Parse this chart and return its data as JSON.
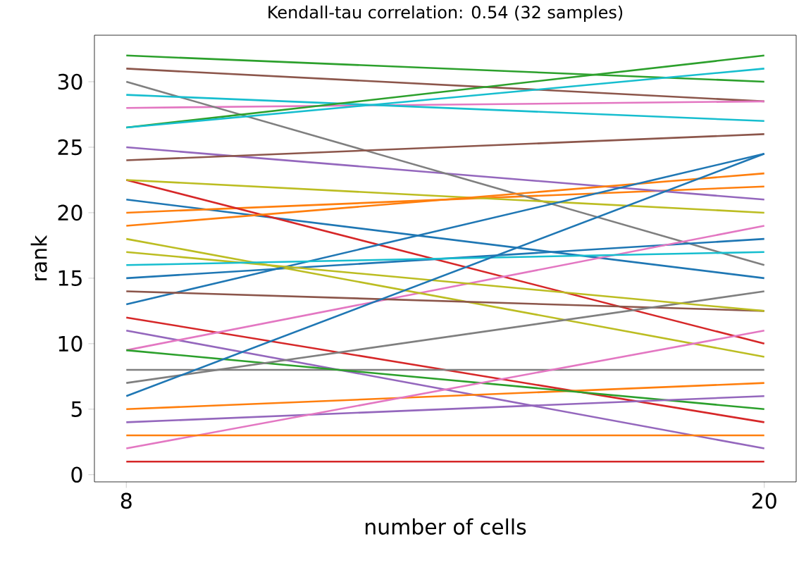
{
  "chart_data": {
    "type": "line",
    "title": "Kendall-tau correlation: 0.54 (32 samples)",
    "xlabel": "number of cells",
    "ylabel": "rank",
    "x": [
      8,
      20
    ],
    "xlim": [
      7.4,
      20.6
    ],
    "xticks": [
      8,
      20
    ],
    "ylim": [
      -0.55,
      33.55
    ],
    "yticks": [
      0,
      5,
      10,
      15,
      20,
      25,
      30
    ],
    "grid": false,
    "marker": "none",
    "line_style": "solid",
    "series": [
      {
        "color": "#1f77b4",
        "values": [
          21,
          15
        ]
      },
      {
        "color": "#ff7f0e",
        "values": [
          20,
          22
        ]
      },
      {
        "color": "#2ca02c",
        "values": [
          32,
          30
        ]
      },
      {
        "color": "#d62728",
        "values": [
          22.5,
          10
        ]
      },
      {
        "color": "#9467bd",
        "values": [
          25,
          21
        ]
      },
      {
        "color": "#8c564b",
        "values": [
          31,
          28.5
        ]
      },
      {
        "color": "#e377c2",
        "values": [
          28,
          28.5
        ]
      },
      {
        "color": "#7f7f7f",
        "values": [
          30,
          16
        ]
      },
      {
        "color": "#bcbd22",
        "values": [
          22.5,
          20
        ]
      },
      {
        "color": "#17becf",
        "values": [
          29,
          27
        ]
      },
      {
        "color": "#1f77b4",
        "values": [
          15,
          18
        ]
      },
      {
        "color": "#ff7f0e",
        "values": [
          19,
          23
        ]
      },
      {
        "color": "#2ca02c",
        "values": [
          26.5,
          32
        ]
      },
      {
        "color": "#d62728",
        "values": [
          12,
          4
        ]
      },
      {
        "color": "#9467bd",
        "values": [
          11,
          2
        ]
      },
      {
        "color": "#8c564b",
        "values": [
          24,
          26
        ]
      },
      {
        "color": "#e377c2",
        "values": [
          9.5,
          19
        ]
      },
      {
        "color": "#7f7f7f",
        "values": [
          8,
          8
        ]
      },
      {
        "color": "#bcbd22",
        "values": [
          18,
          9
        ]
      },
      {
        "color": "#17becf",
        "values": [
          26.5,
          31
        ]
      },
      {
        "color": "#1f77b4",
        "values": [
          13,
          24.5
        ]
      },
      {
        "color": "#ff7f0e",
        "values": [
          5,
          7
        ]
      },
      {
        "color": "#2ca02c",
        "values": [
          9.5,
          5
        ]
      },
      {
        "color": "#d62728",
        "values": [
          1,
          1
        ]
      },
      {
        "color": "#9467bd",
        "values": [
          4,
          6
        ]
      },
      {
        "color": "#8c564b",
        "values": [
          14,
          12.5
        ]
      },
      {
        "color": "#e377c2",
        "values": [
          2,
          11
        ]
      },
      {
        "color": "#7f7f7f",
        "values": [
          7,
          14
        ]
      },
      {
        "color": "#bcbd22",
        "values": [
          17,
          12.5
        ]
      },
      {
        "color": "#17becf",
        "values": [
          16,
          17
        ]
      },
      {
        "color": "#1f77b4",
        "values": [
          6,
          24.5
        ]
      },
      {
        "color": "#ff7f0e",
        "values": [
          3,
          3
        ]
      }
    ]
  }
}
